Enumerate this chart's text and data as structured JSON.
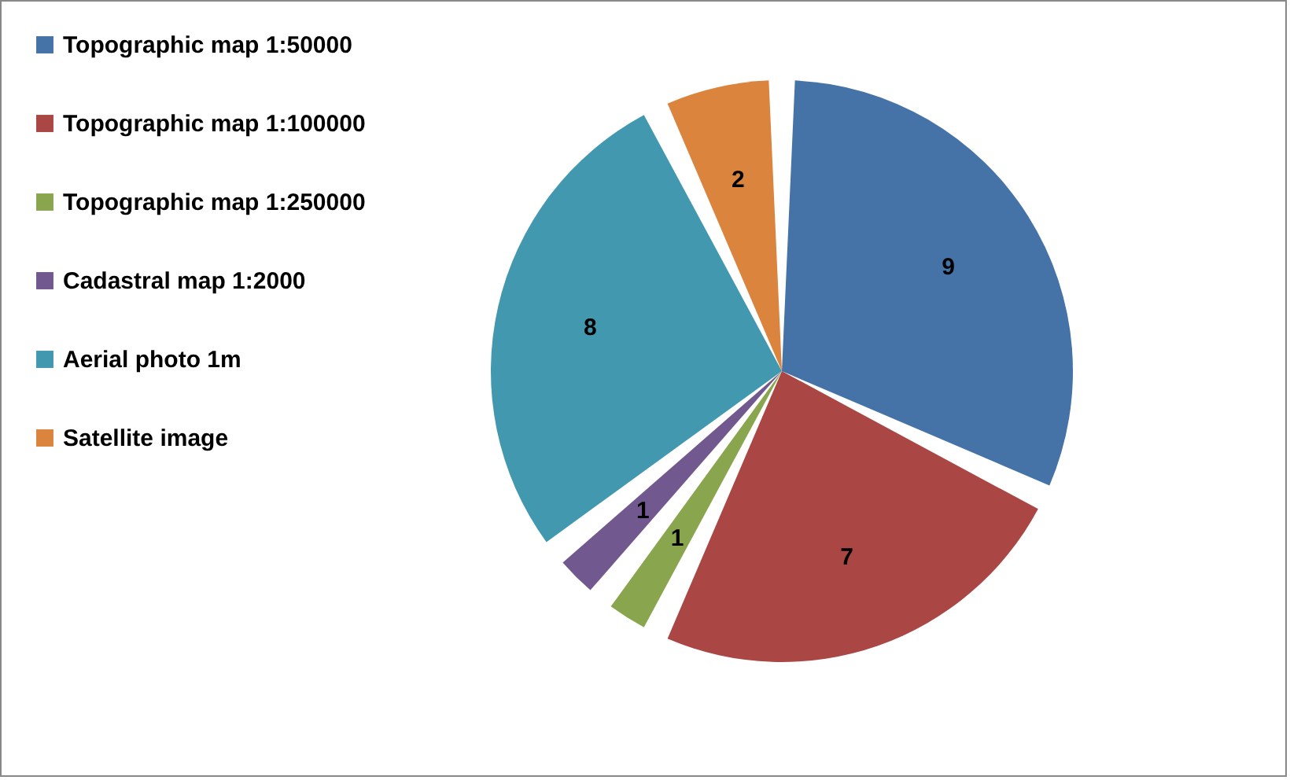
{
  "chart_data": {
    "type": "pie",
    "categories": [
      "Topographic map 1:50000",
      "Topographic map 1:100000",
      "Topographic map 1:250000",
      "Cadastral map 1:2000",
      "Aerial photo 1m",
      "Satellite image"
    ],
    "values": [
      9,
      7,
      1,
      1,
      8,
      2
    ],
    "colors": [
      "#4572a7",
      "#aa4643",
      "#89a54e",
      "#71588f",
      "#4198af",
      "#db843d"
    ],
    "data_labels": true,
    "legend": "left"
  }
}
